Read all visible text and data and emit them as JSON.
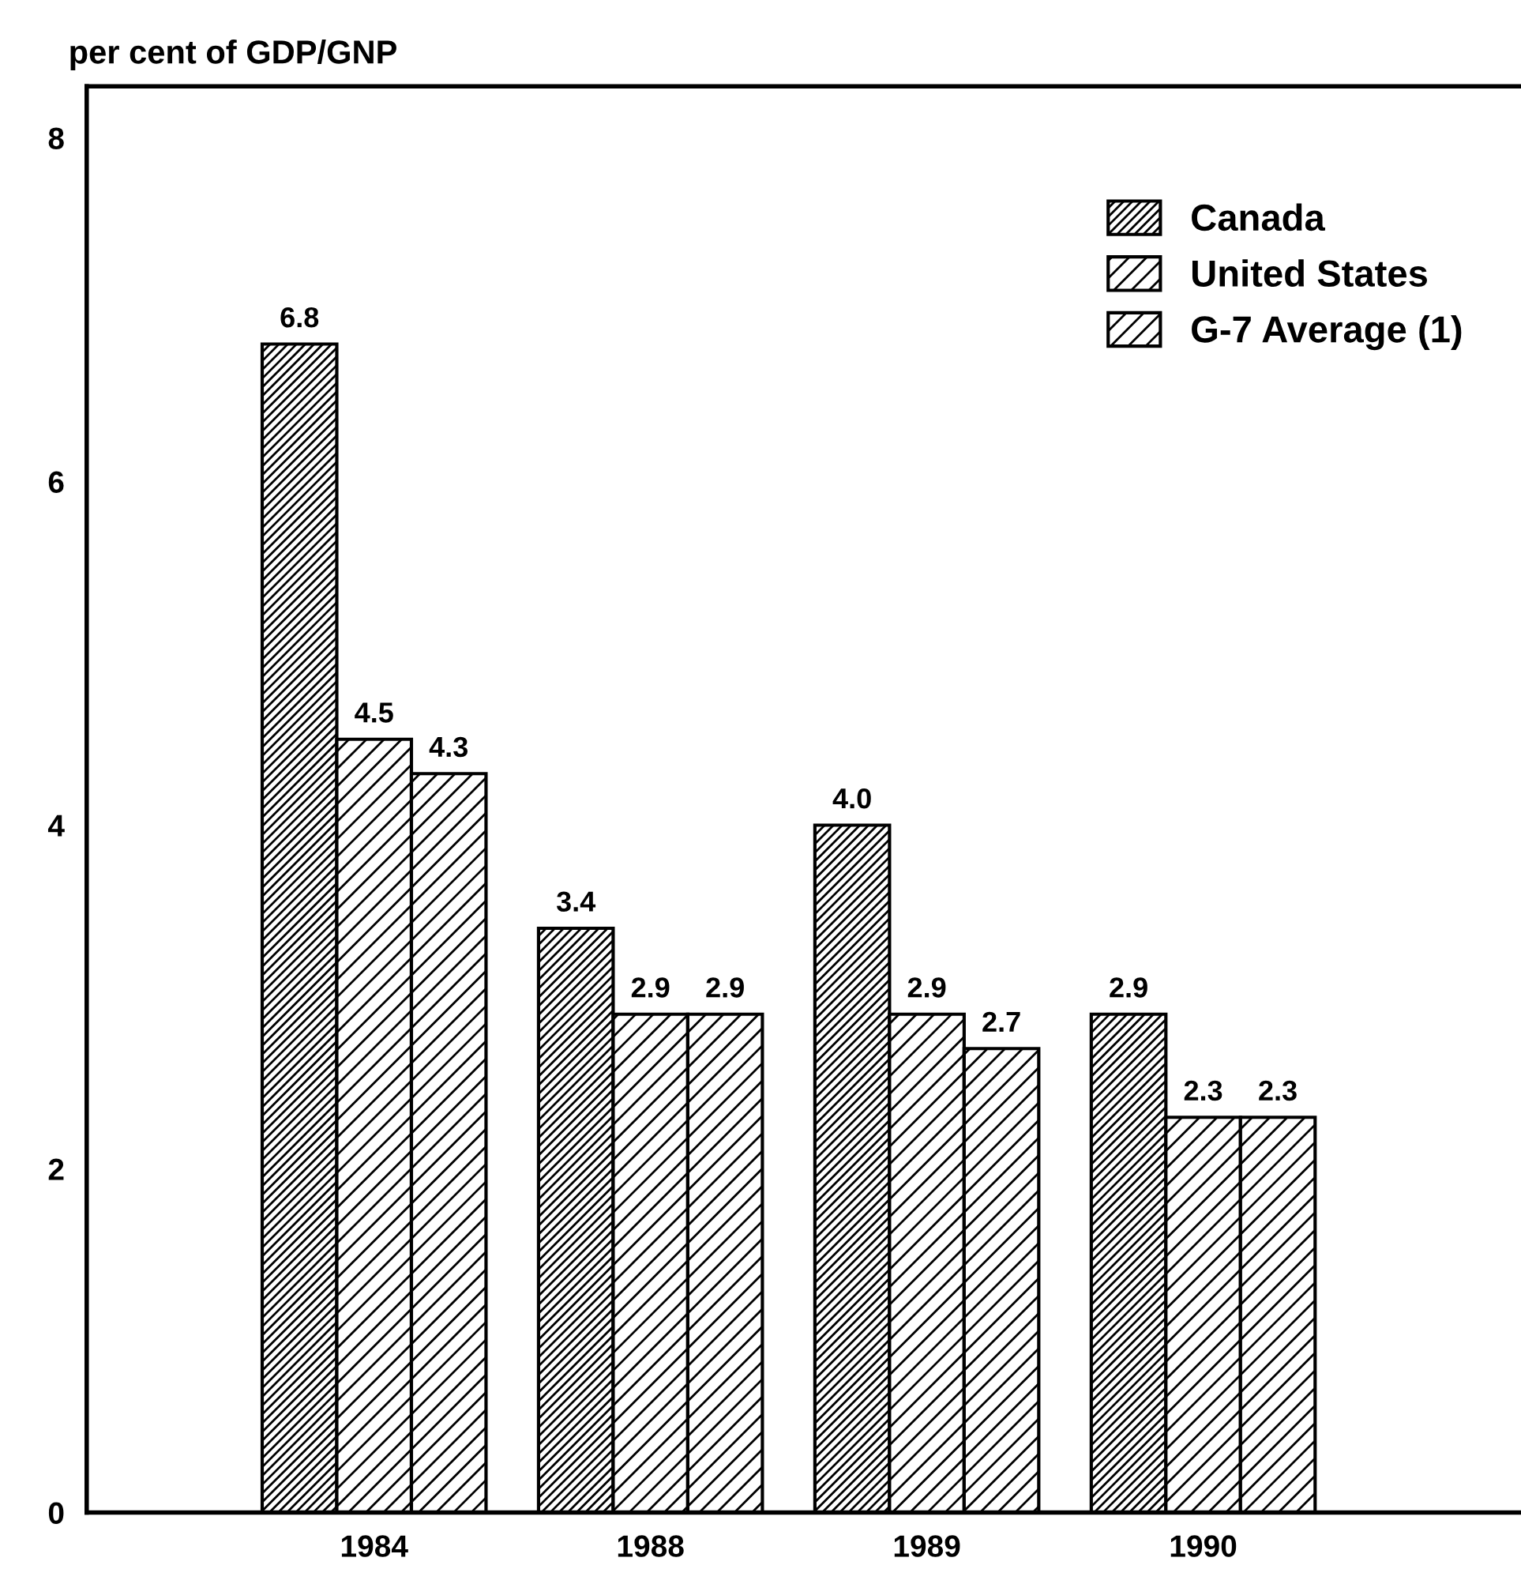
{
  "chart_data": {
    "type": "bar",
    "ylabel": "per cent of GDP/GNP",
    "categories": [
      "1984",
      "1988",
      "1989",
      "1990"
    ],
    "series": [
      {
        "name": "Canada",
        "color": "#000000",
        "values": [
          6.8,
          3.4,
          4.0,
          2.9
        ],
        "value_labels": [
          "6.8",
          "3.4",
          "4.0",
          "2.9"
        ]
      },
      {
        "name": "United States",
        "color": "#000000",
        "values": [
          4.5,
          2.9,
          2.9,
          2.3
        ],
        "value_labels": [
          "4.5",
          "2.9",
          "2.9",
          "2.3"
        ]
      },
      {
        "name": "G-7 Average (1)",
        "color": "#000000",
        "values": [
          4.3,
          2.9,
          2.7,
          2.3
        ],
        "value_labels": [
          "4.3",
          "2.9",
          "2.7",
          "2.3"
        ]
      }
    ],
    "ylim": [
      0,
      8.3
    ],
    "yticks": [
      0,
      2,
      4,
      6,
      8
    ],
    "legend": "top right",
    "grid": false
  }
}
